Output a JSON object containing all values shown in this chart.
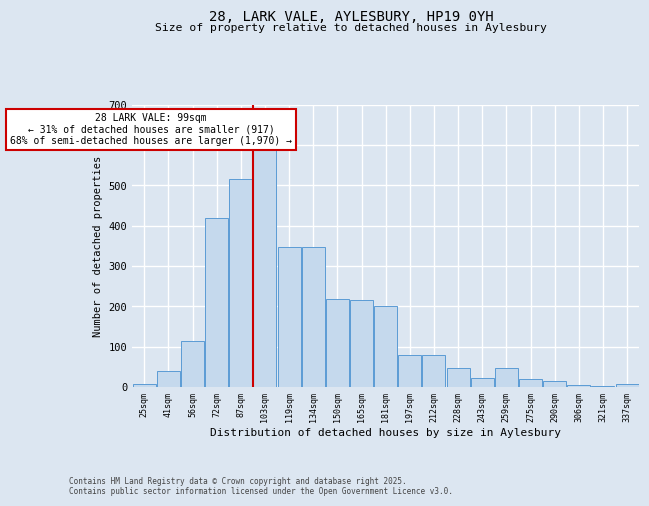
{
  "title": "28, LARK VALE, AYLESBURY, HP19 0YH",
  "subtitle": "Size of property relative to detached houses in Aylesbury",
  "xlabel": "Distribution of detached houses by size in Aylesbury",
  "ylabel": "Number of detached properties",
  "categories": [
    "25sqm",
    "41sqm",
    "56sqm",
    "72sqm",
    "87sqm",
    "103sqm",
    "119sqm",
    "134sqm",
    "150sqm",
    "165sqm",
    "181sqm",
    "197sqm",
    "212sqm",
    "228sqm",
    "243sqm",
    "259sqm",
    "275sqm",
    "290sqm",
    "306sqm",
    "321sqm",
    "337sqm"
  ],
  "values": [
    8,
    40,
    115,
    420,
    515,
    630,
    348,
    348,
    218,
    215,
    200,
    80,
    80,
    48,
    22,
    48,
    20,
    15,
    5,
    3,
    8
  ],
  "bar_color": "#c5d9ed",
  "bar_edge_color": "#5b9bd5",
  "vline_color": "#cc0000",
  "vline_pos": 4.5,
  "annotation_text": "28 LARK VALE: 99sqm\n← 31% of detached houses are smaller (917)\n68% of semi-detached houses are larger (1,970) →",
  "annotation_box_facecolor": "#ffffff",
  "annotation_box_edgecolor": "#cc0000",
  "ylim": [
    0,
    700
  ],
  "yticks": [
    0,
    100,
    200,
    300,
    400,
    500,
    600,
    700
  ],
  "plot_bg": "#dce6f1",
  "fig_bg": "#dce6f1",
  "grid_color": "#ffffff",
  "footer_line1": "Contains HM Land Registry data © Crown copyright and database right 2025.",
  "footer_line2": "Contains public sector information licensed under the Open Government Licence v3.0."
}
